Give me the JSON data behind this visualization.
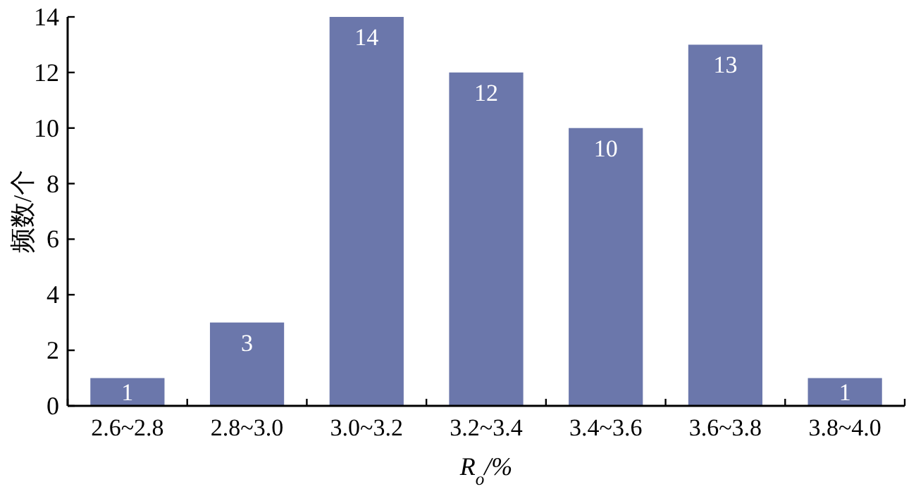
{
  "chart_data": {
    "type": "bar",
    "categories": [
      "2.6~2.8",
      "2.8~3.0",
      "3.0~3.2",
      "3.2~3.4",
      "3.4~3.6",
      "3.6~3.8",
      "3.8~4.0"
    ],
    "values": [
      1,
      3,
      14,
      12,
      10,
      13,
      1
    ],
    "color": "#6b77ab",
    "ylim": [
      0,
      14
    ],
    "yticks": [
      0,
      2,
      4,
      6,
      8,
      10,
      12,
      14
    ],
    "xlabel": "R$_{o}$/%",
    "ylabel": "频数/个",
    "data_labels": true,
    "grid": false
  }
}
